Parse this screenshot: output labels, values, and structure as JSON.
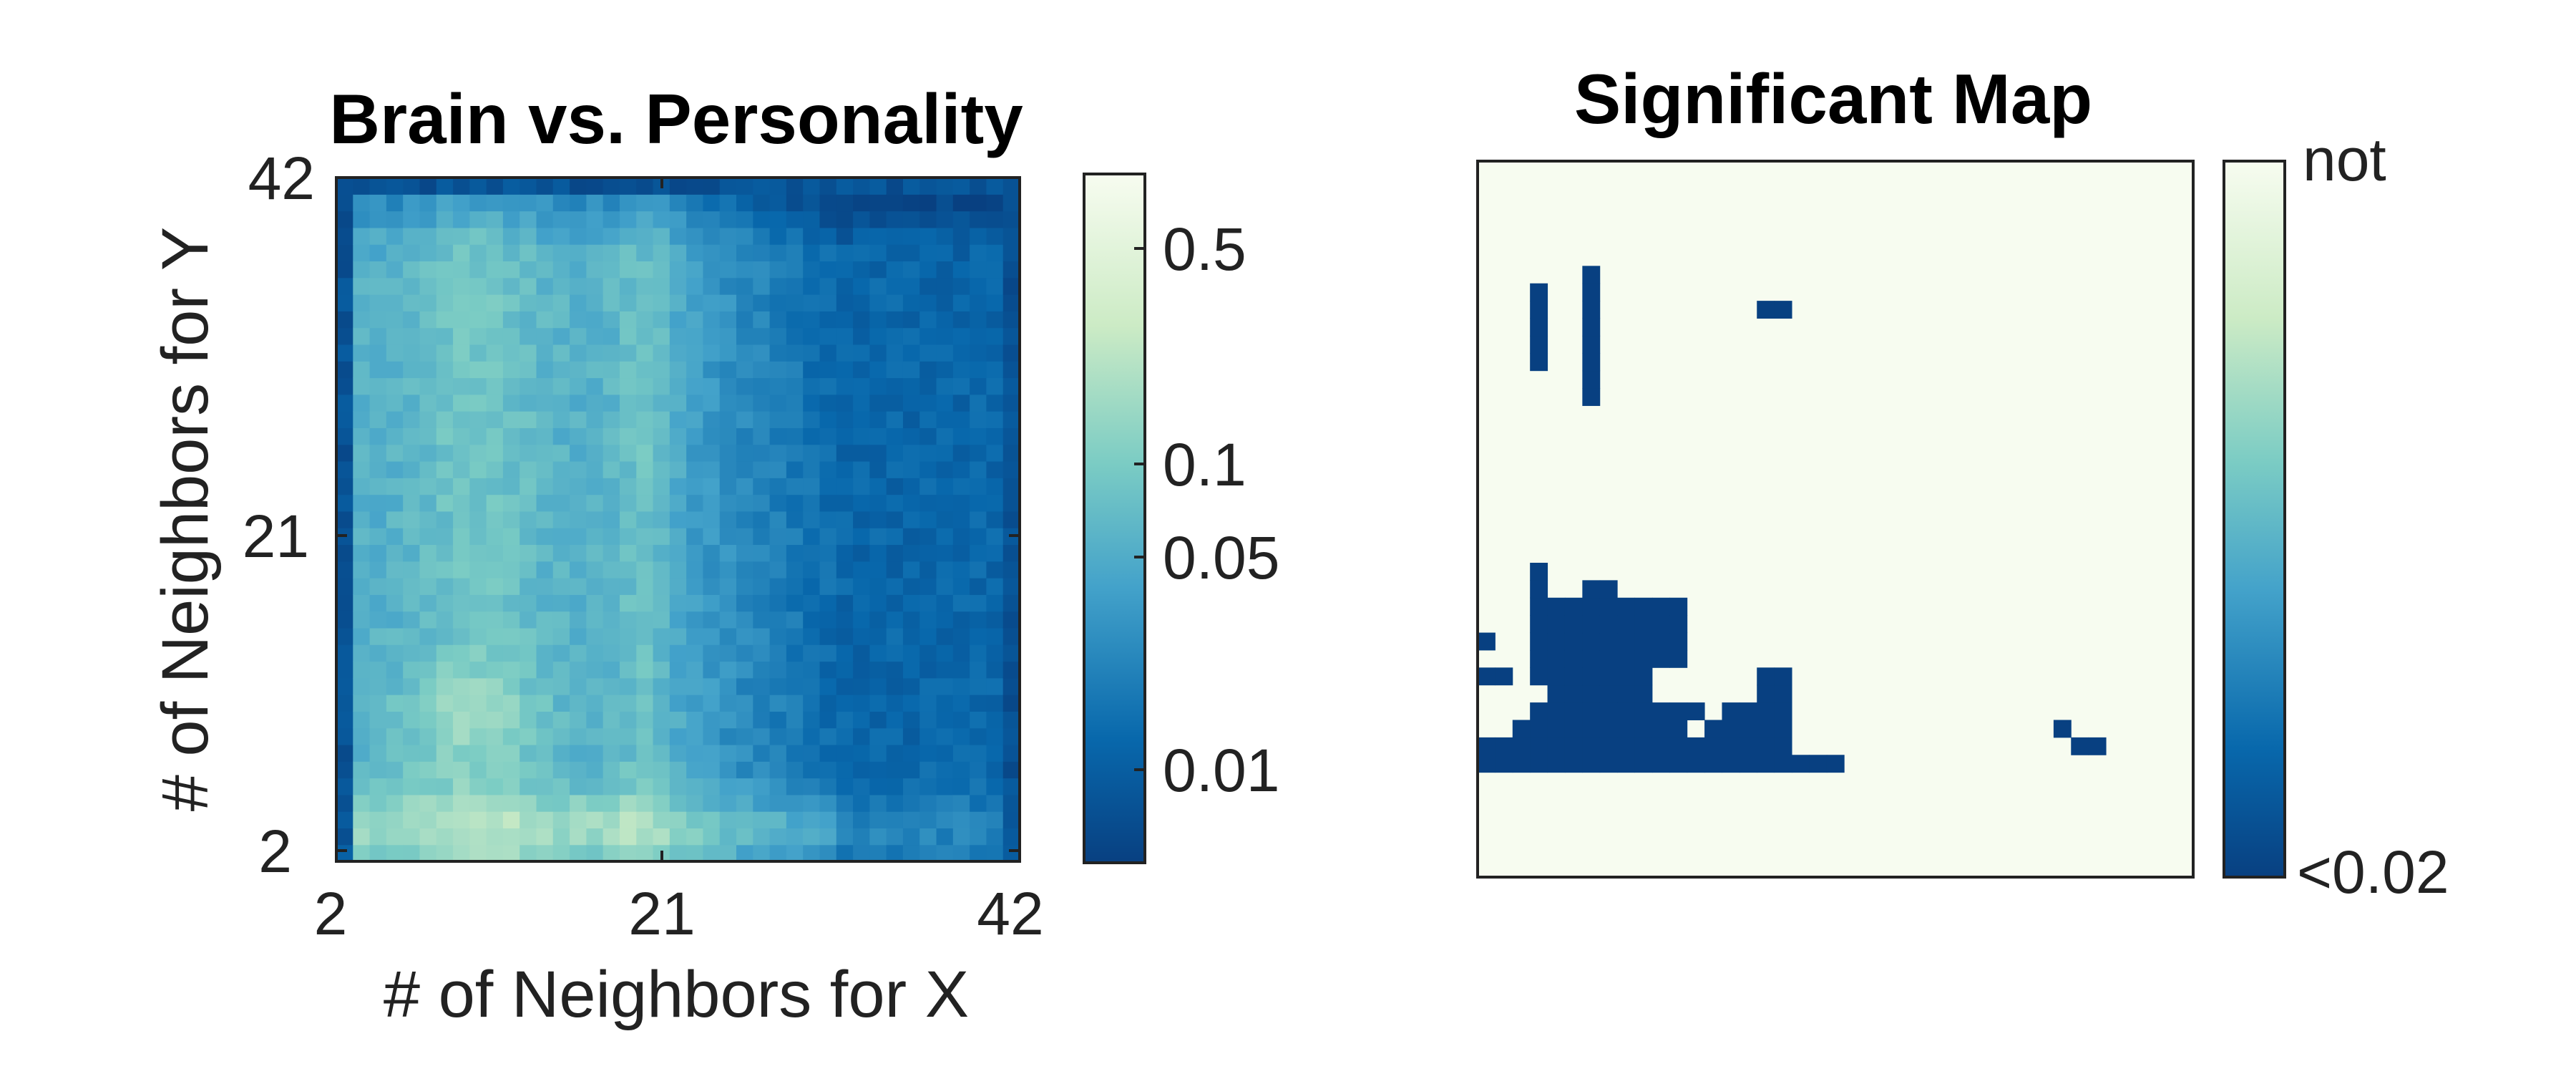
{
  "chart_data": [
    {
      "type": "heatmap",
      "title": "Brain vs. Personality",
      "xlabel": "# of Neighbors for X",
      "ylabel": "# of Neighbors for Y",
      "x_range": [
        2,
        42
      ],
      "y_range": [
        2,
        42
      ],
      "x_ticks": [
        "2",
        "21",
        "42"
      ],
      "y_ticks": [
        "2",
        "21",
        "42"
      ],
      "colorbar": {
        "scale": "log",
        "range": [
          0.005,
          0.75
        ],
        "tick_values": [
          0.5,
          0.1,
          0.05,
          0.01
        ],
        "tick_labels": [
          "0.5",
          "0.1",
          "0.05",
          "0.01"
        ]
      },
      "colormap": [
        "#f7fcf0",
        "#ccebc5",
        "#7bccc4",
        "#43a2ca",
        "#0868ac",
        "#084081"
      ]
    },
    {
      "type": "heatmap",
      "title": "Significant Map",
      "x_range": [
        2,
        42
      ],
      "y_range": [
        2,
        42
      ],
      "colorbar": {
        "top_label": "not",
        "bottom_label": "<0.02"
      },
      "significant_cells": [
        [
          5,
          31
        ],
        [
          5,
          32
        ],
        [
          5,
          33
        ],
        [
          5,
          34
        ],
        [
          5,
          35
        ],
        [
          8,
          29
        ],
        [
          8,
          30
        ],
        [
          8,
          31
        ],
        [
          8,
          32
        ],
        [
          8,
          33
        ],
        [
          8,
          34
        ],
        [
          8,
          35
        ],
        [
          8,
          36
        ],
        [
          18,
          34
        ],
        [
          19,
          34
        ],
        [
          5,
          13
        ],
        [
          5,
          14
        ],
        [
          5,
          15
        ],
        [
          5,
          16
        ],
        [
          5,
          17
        ],
        [
          5,
          18
        ],
        [
          5,
          19
        ],
        [
          6,
          12
        ],
        [
          6,
          13
        ],
        [
          6,
          14
        ],
        [
          6,
          15
        ],
        [
          6,
          16
        ],
        [
          6,
          17
        ],
        [
          7,
          12
        ],
        [
          7,
          13
        ],
        [
          7,
          14
        ],
        [
          7,
          15
        ],
        [
          7,
          16
        ],
        [
          7,
          17
        ],
        [
          8,
          11
        ],
        [
          8,
          12
        ],
        [
          8,
          13
        ],
        [
          8,
          14
        ],
        [
          8,
          15
        ],
        [
          8,
          16
        ],
        [
          8,
          17
        ],
        [
          8,
          18
        ],
        [
          9,
          11
        ],
        [
          9,
          12
        ],
        [
          9,
          13
        ],
        [
          9,
          14
        ],
        [
          9,
          15
        ],
        [
          9,
          16
        ],
        [
          9,
          17
        ],
        [
          9,
          18
        ],
        [
          10,
          12
        ],
        [
          10,
          13
        ],
        [
          10,
          14
        ],
        [
          10,
          15
        ],
        [
          10,
          16
        ],
        [
          10,
          17
        ],
        [
          11,
          12
        ],
        [
          11,
          13
        ],
        [
          11,
          14
        ],
        [
          11,
          15
        ],
        [
          11,
          16
        ],
        [
          11,
          17
        ],
        [
          12,
          14
        ],
        [
          12,
          15
        ],
        [
          12,
          16
        ],
        [
          12,
          17
        ],
        [
          13,
          14
        ],
        [
          13,
          15
        ],
        [
          13,
          16
        ],
        [
          13,
          17
        ],
        [
          2,
          15
        ],
        [
          2,
          13
        ],
        [
          3,
          13
        ],
        [
          18,
          12
        ],
        [
          18,
          13
        ],
        [
          19,
          12
        ],
        [
          19,
          13
        ],
        [
          2,
          8
        ],
        [
          3,
          8
        ],
        [
          4,
          8
        ],
        [
          5,
          8
        ],
        [
          6,
          8
        ],
        [
          7,
          8
        ],
        [
          8,
          8
        ],
        [
          9,
          8
        ],
        [
          10,
          8
        ],
        [
          11,
          8
        ],
        [
          12,
          8
        ],
        [
          13,
          8
        ],
        [
          14,
          8
        ],
        [
          15,
          8
        ],
        [
          16,
          8
        ],
        [
          17,
          8
        ],
        [
          18,
          8
        ],
        [
          19,
          8
        ],
        [
          20,
          8
        ],
        [
          21,
          8
        ],
        [
          22,
          8
        ],
        [
          2,
          9
        ],
        [
          3,
          9
        ],
        [
          4,
          9
        ],
        [
          5,
          9
        ],
        [
          6,
          9
        ],
        [
          7,
          9
        ],
        [
          8,
          9
        ],
        [
          9,
          9
        ],
        [
          10,
          9
        ],
        [
          11,
          9
        ],
        [
          12,
          9
        ],
        [
          13,
          9
        ],
        [
          14,
          9
        ],
        [
          15,
          9
        ],
        [
          16,
          9
        ],
        [
          17,
          9
        ],
        [
          18,
          9
        ],
        [
          19,
          9
        ],
        [
          4,
          10
        ],
        [
          5,
          10
        ],
        [
          6,
          10
        ],
        [
          7,
          10
        ],
        [
          8,
          10
        ],
        [
          9,
          10
        ],
        [
          10,
          10
        ],
        [
          11,
          10
        ],
        [
          12,
          10
        ],
        [
          13,
          10
        ],
        [
          15,
          10
        ],
        [
          16,
          10
        ],
        [
          17,
          10
        ],
        [
          18,
          10
        ],
        [
          19,
          10
        ],
        [
          5,
          11
        ],
        [
          6,
          11
        ],
        [
          7,
          11
        ],
        [
          8,
          11
        ],
        [
          9,
          11
        ],
        [
          10,
          11
        ],
        [
          11,
          11
        ],
        [
          12,
          11
        ],
        [
          13,
          11
        ],
        [
          14,
          11
        ],
        [
          16,
          11
        ],
        [
          17,
          11
        ],
        [
          18,
          11
        ],
        [
          19,
          11
        ],
        [
          35,
          10
        ],
        [
          36,
          9
        ],
        [
          37,
          9
        ]
      ]
    }
  ]
}
